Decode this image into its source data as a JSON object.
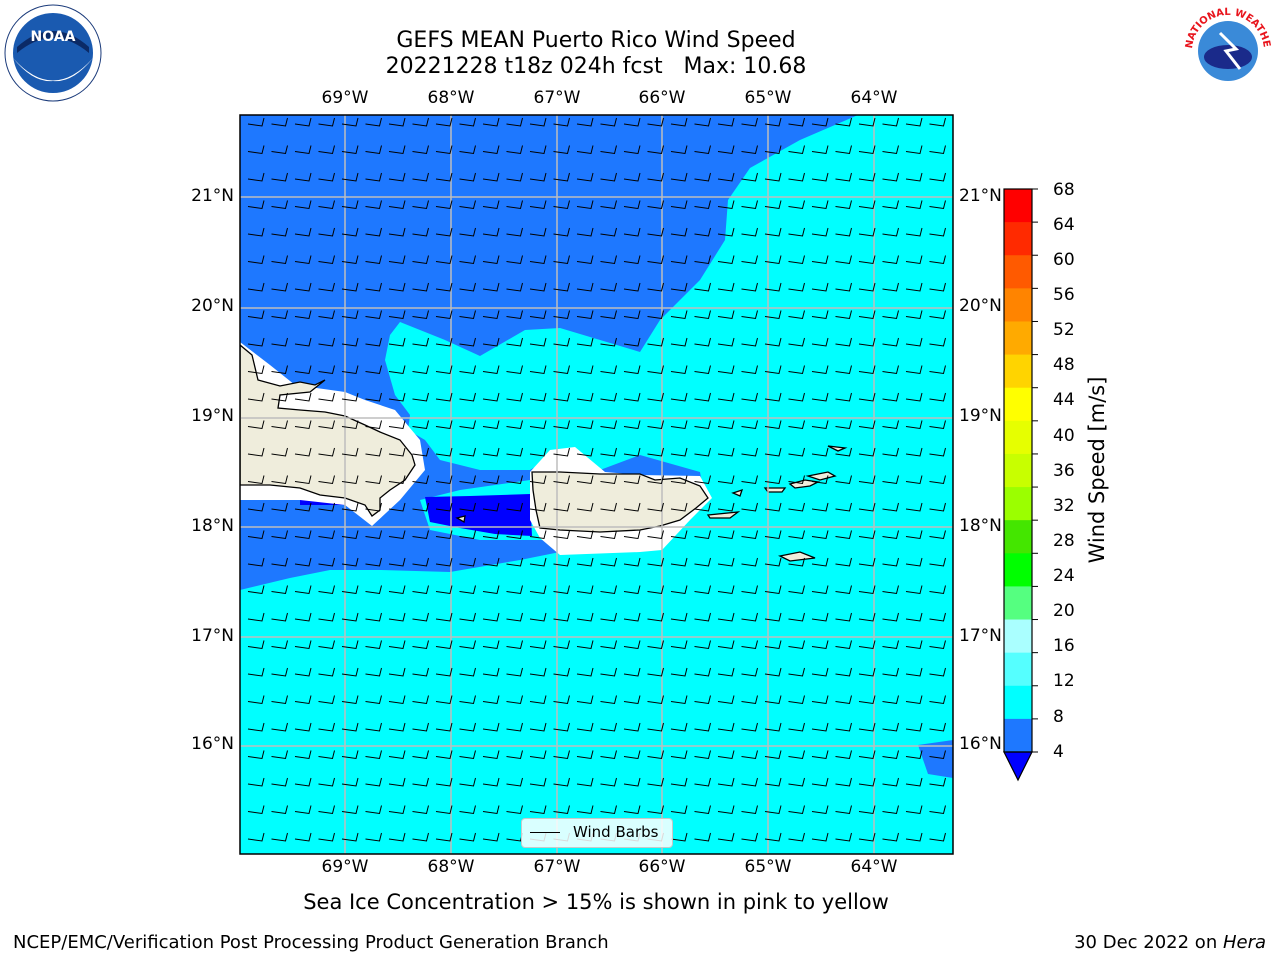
{
  "title": {
    "line1": "GEFS MEAN Puerto Rico Wind Speed",
    "line2": "20221228 t18z 024h fcst   Max: 10.68"
  },
  "map": {
    "lon_labels": [
      "69°W",
      "68°W",
      "67°W",
      "66°W",
      "65°W",
      "64°W"
    ],
    "lat_labels": [
      "21°N",
      "20°N",
      "19°N",
      "18°N",
      "17°N",
      "16°N"
    ],
    "wind_barbs_legend": "Wind Barbs",
    "colors": {
      "level_4_8": "#1e78ff",
      "level_0_4": "#0000ff",
      "level_8_12": "#00ffff",
      "land": "#efeddc",
      "grid": "#bdbdbd"
    }
  },
  "colorbar": {
    "title": "Wind Speed [m/s]",
    "ticks": [
      "68",
      "64",
      "60",
      "56",
      "52",
      "48",
      "44",
      "40",
      "36",
      "32",
      "28",
      "24",
      "20",
      "16",
      "12",
      "8",
      "4"
    ],
    "colors": [
      "#ff0000",
      "#ff2a00",
      "#ff5a00",
      "#ff8400",
      "#ffaa00",
      "#ffd400",
      "#ffff00",
      "#e6ff00",
      "#c8ff00",
      "#9bff00",
      "#44e600",
      "#00ff00",
      "#55ff80",
      "#aaffff",
      "#55ffff",
      "#00ffff",
      "#1e78ff"
    ],
    "extend_color": "#0000ff"
  },
  "caption": "Sea Ice Concentration > 15% is shown in pink to yellow",
  "footer": {
    "left": "NCEP/EMC/Verification Post Processing Product Generation Branch",
    "date": "30 Dec 2022 on ",
    "host": "Hera"
  },
  "logos": {
    "noaa_text": "NOAA",
    "nws_text": "NATIONAL WEATHER SERVICE"
  }
}
